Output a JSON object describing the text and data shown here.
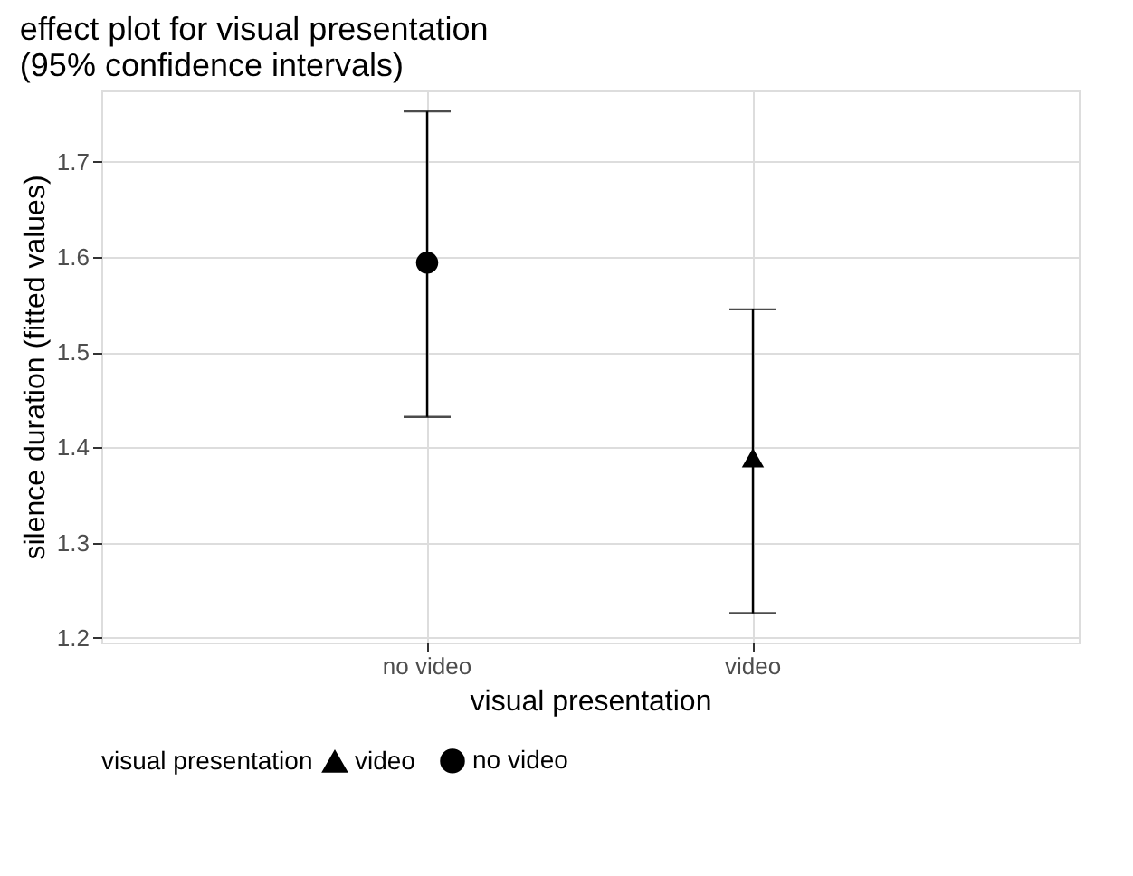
{
  "chart_data": {
    "type": "scatter",
    "title": "effect plot for visual presentation\n (95% confidence intervals)",
    "xlabel": "visual presentation",
    "ylabel": "silence duration (fitted values)",
    "legend_title": "visual presentation",
    "categories": [
      "no video",
      "video"
    ],
    "series": [
      {
        "name": "video",
        "color": "#000000",
        "marker": "triangle",
        "values": [
          null,
          1.389
        ],
        "errors": [
          null,
          [
            1.226,
            1.545
          ]
        ]
      },
      {
        "name": "no video",
        "color": "#000000",
        "marker": "circle",
        "values": [
          1.594,
          null
        ],
        "errors": [
          [
            1.432,
            1.753
          ],
          null
        ]
      }
    ],
    "ylim": [
      1.195,
      1.775
    ],
    "yticks": [
      1.2,
      1.3,
      1.4,
      1.5,
      1.6,
      1.7
    ],
    "grid": true,
    "legend": "bottom"
  }
}
